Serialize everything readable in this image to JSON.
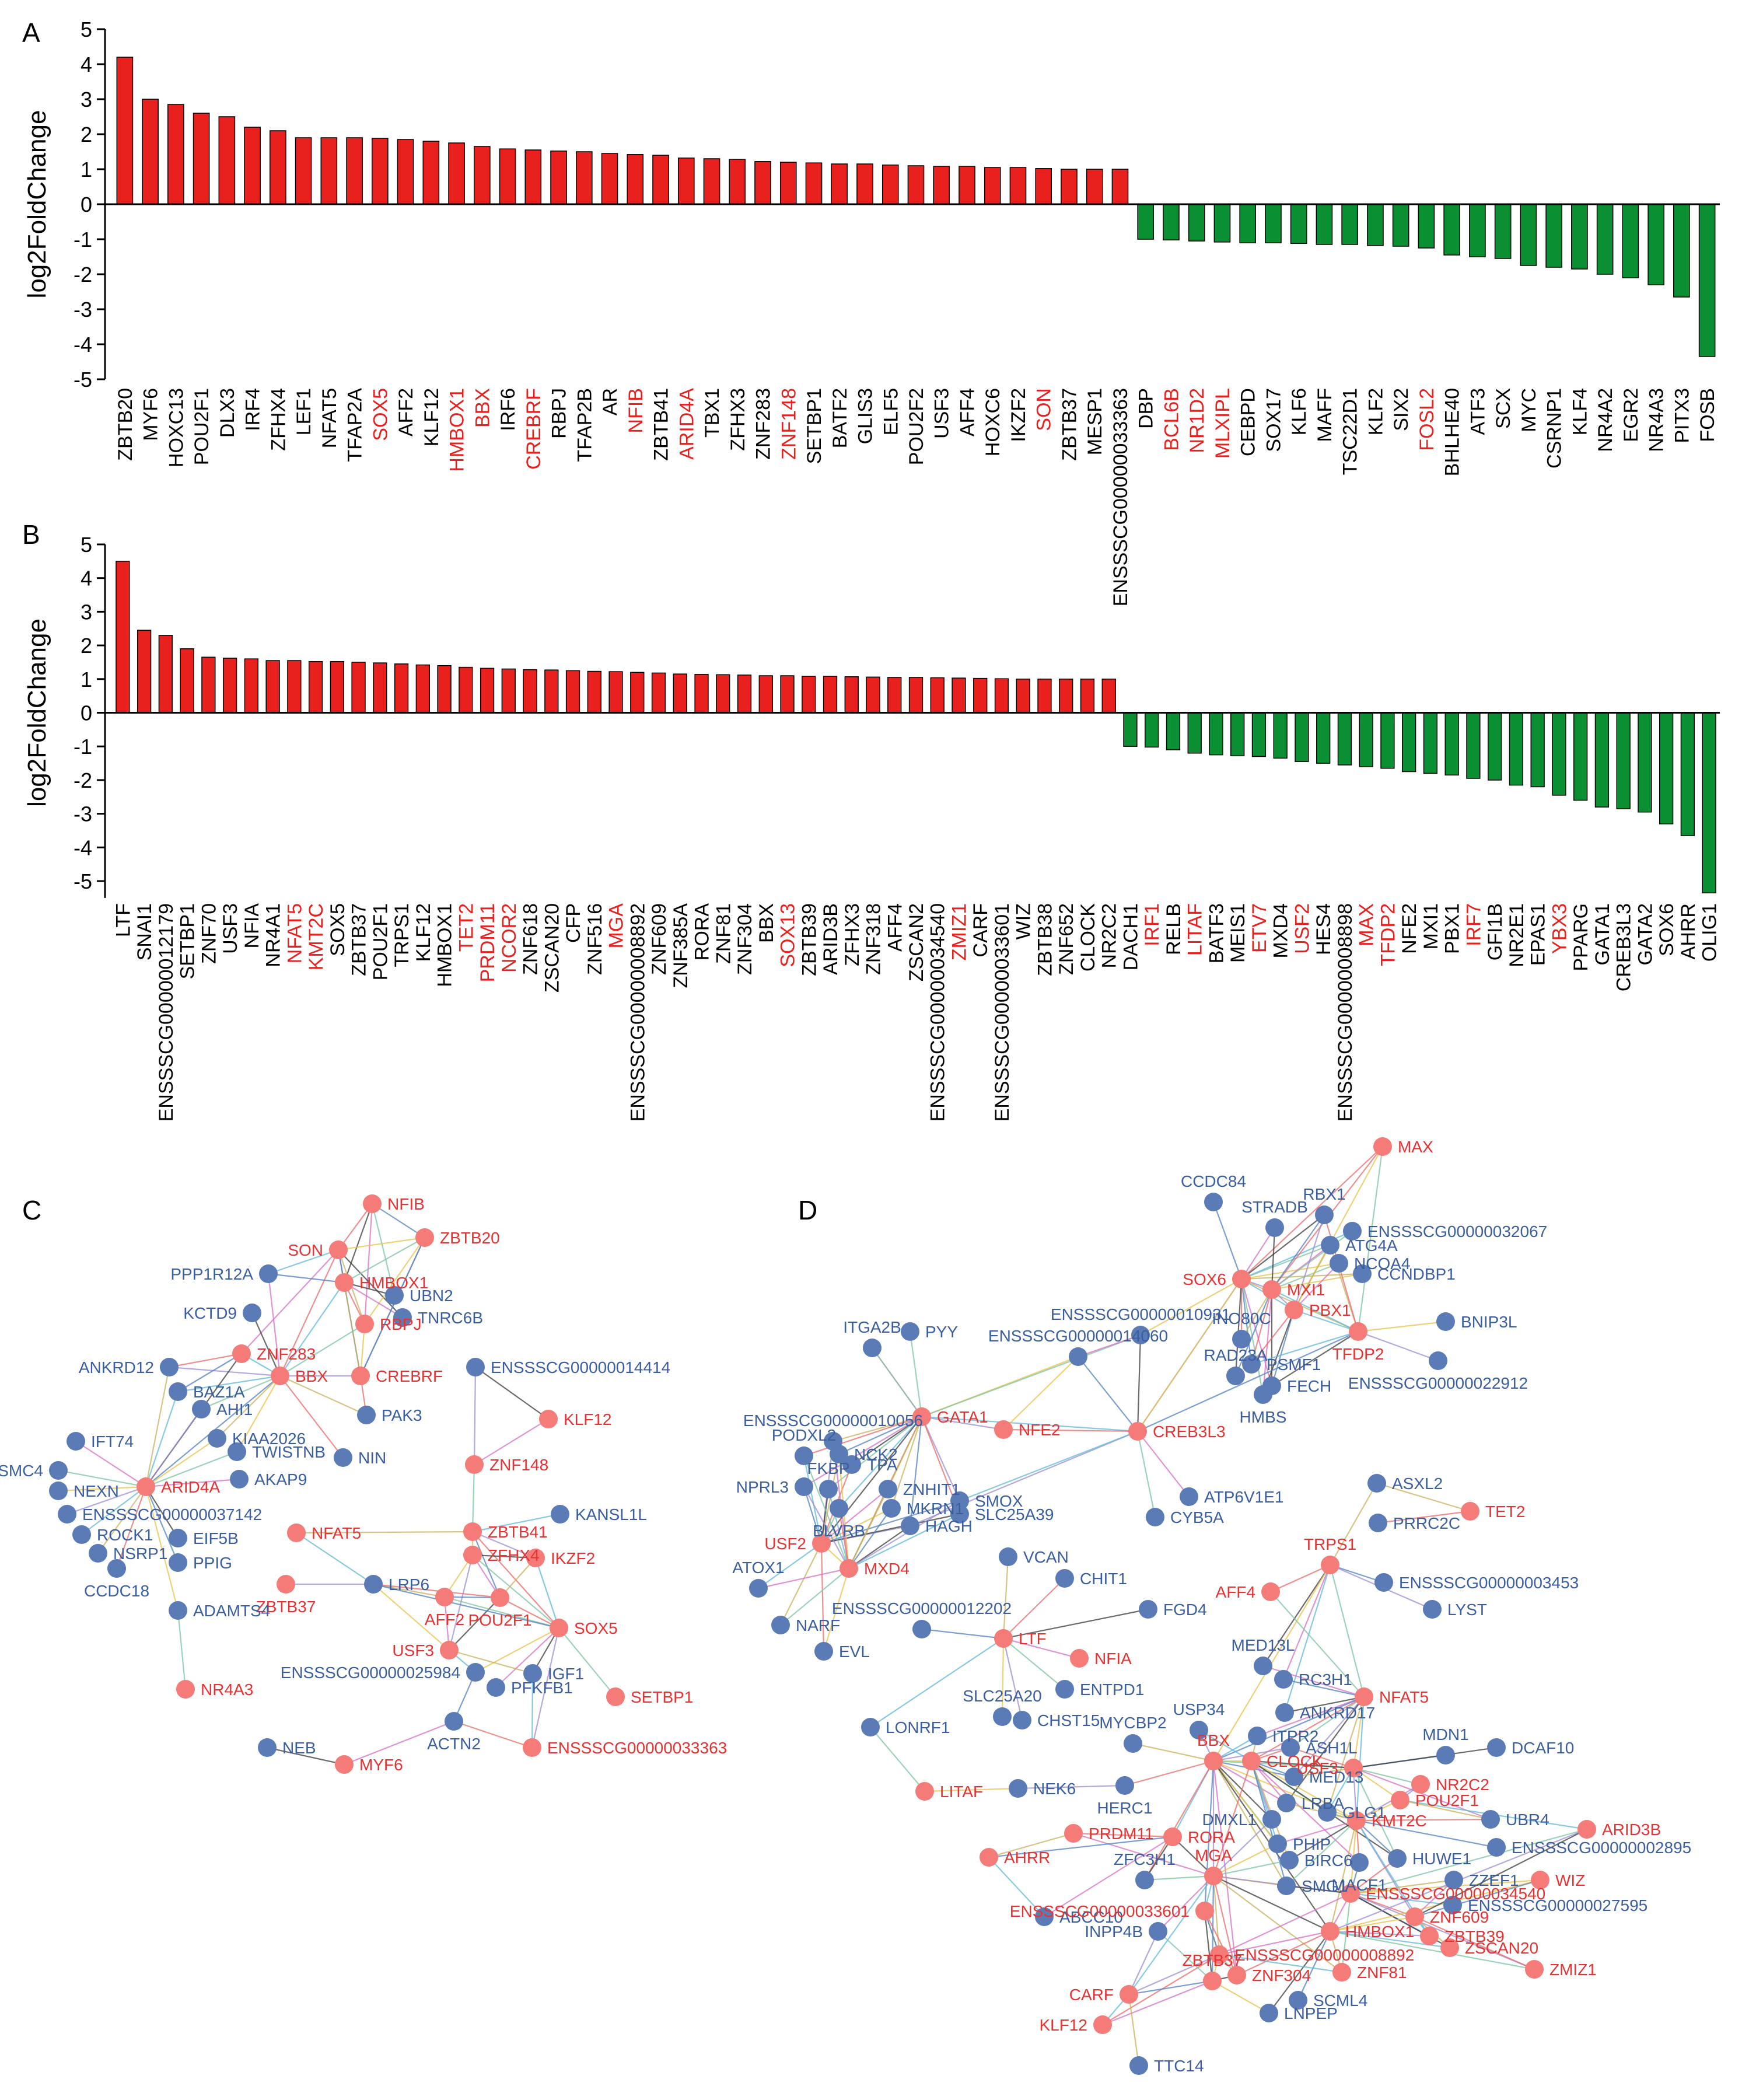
{
  "panel_labels": [
    "A",
    "B",
    "C",
    "D"
  ],
  "colors": {
    "up": "#e8201e",
    "down": "#0a8f33",
    "node_tf": "#f47b78",
    "node_gene": "#5a7bb5",
    "label_tf": "#e83232",
    "label_gene": "#3a5ea0",
    "axis": "#000000"
  },
  "chart_data": [
    {
      "type": "bar",
      "panel": "A",
      "ylabel": "log2FoldChange",
      "ylim": [
        -5,
        5
      ],
      "yticks": [
        5,
        4,
        3,
        2,
        1,
        0,
        -1,
        -2,
        -3,
        -4,
        -5
      ],
      "categories": [
        "ZBTB20",
        "MYF6",
        "HOXC13",
        "POU2F1",
        "DLX3",
        "IRF4",
        "ZFHX4",
        "LEF1",
        "NFAT5",
        "TFAP2A",
        "SOX5",
        "AFF2",
        "KLF12",
        "HMBOX1",
        "BBX",
        "IRF6",
        "CREBRF",
        "RBPJ",
        "TFAP2B",
        "AR",
        "NFIB",
        "ZBTB41",
        "ARID4A",
        "TBX1",
        "ZFHX3",
        "ZNF283",
        "ZNF148",
        "SETBP1",
        "BATF2",
        "GLIS3",
        "ELF5",
        "POU2F2",
        "USF3",
        "AFF4",
        "HOXC6",
        "IKZF2",
        "SON",
        "ZBTB37",
        "MESP1",
        "ENSSSCG00000033363",
        "DBP",
        "BCL6B",
        "NR1D2",
        "MLXIPL",
        "CEBPD",
        "SOX17",
        "KLF6",
        "MAFF",
        "TSC22D1",
        "KLF2",
        "SIX2",
        "FOSL2",
        "BHLHE40",
        "ATF3",
        "SCX",
        "MYC",
        "CSRNP1",
        "KLF4",
        "NR4A2",
        "EGR2",
        "NR4A3",
        "PITX3",
        "FOSB"
      ],
      "values": [
        4.2,
        3.0,
        2.85,
        2.6,
        2.5,
        2.2,
        2.1,
        1.9,
        1.9,
        1.9,
        1.88,
        1.85,
        1.8,
        1.75,
        1.65,
        1.58,
        1.55,
        1.52,
        1.5,
        1.45,
        1.42,
        1.4,
        1.32,
        1.3,
        1.28,
        1.22,
        1.2,
        1.18,
        1.15,
        1.15,
        1.12,
        1.1,
        1.08,
        1.08,
        1.05,
        1.05,
        1.02,
        1.0,
        1.0,
        1.0,
        -1.0,
        -1.02,
        -1.05,
        -1.08,
        -1.1,
        -1.1,
        -1.12,
        -1.15,
        -1.15,
        -1.18,
        -1.2,
        -1.25,
        -1.45,
        -1.5,
        -1.55,
        -1.75,
        -1.8,
        -1.85,
        -2.0,
        -2.1,
        -2.3,
        -2.65,
        -4.35
      ],
      "highlighted": [
        "SOX5",
        "HMBOX1",
        "BBX",
        "CREBRF",
        "NFIB",
        "ARID4A",
        "ZNF148",
        "SON",
        "BCL6B",
        "NR1D2",
        "MLXIPL",
        "FOSL2"
      ]
    },
    {
      "type": "bar",
      "panel": "B",
      "ylabel": "log2FoldChange",
      "ylim": [
        -5.5,
        5
      ],
      "yticks": [
        5,
        4,
        3,
        2,
        1,
        0,
        -1,
        -2,
        -3,
        -4,
        -5
      ],
      "categories": [
        "LTF",
        "SNAI1",
        "ENSSSCG00000012179",
        "SETBP1",
        "ZNF70",
        "USF3",
        "NFIA",
        "NR4A1",
        "NFAT5",
        "KMT2C",
        "SOX5",
        "ZBTB37",
        "POU2F1",
        "TRPS1",
        "KLF12",
        "HMBOX1",
        "TET2",
        "PRDM11",
        "NCOR2",
        "ZNF618",
        "ZSCAN20",
        "CFP",
        "ZNF516",
        "MGA",
        "ENSSSCG00000008892",
        "ZNF609",
        "ZNF385A",
        "RORA",
        "ZNF81",
        "ZNF304",
        "BBX",
        "SOX13",
        "ZBTB39",
        "ARID3B",
        "ZFHX3",
        "ZNF318",
        "AFF4",
        "ZSCAN2",
        "ENSSSCG00000034540",
        "ZMIZ1",
        "CARF",
        "ENSSSCG00000033601",
        "WIZ",
        "ZBTB38",
        "ZNF652",
        "CLOCK",
        "NR2C2",
        "DACH1",
        "IRF1",
        "RELB",
        "LITAF",
        "BATF3",
        "MEIS1",
        "ETV7",
        "MXD4",
        "USF2",
        "HES4",
        "ENSSSCG00000008898",
        "MAX",
        "TFDP2",
        "NFE2",
        "MXI1",
        "PBX1",
        "IRF7",
        "GFI1B",
        "NR2E1",
        "EPAS1",
        "YBX3",
        "PPARG",
        "GATA1",
        "CREB3L3",
        "GATA2",
        "SOX6",
        "AHRR",
        "OLIG1"
      ],
      "values": [
        4.5,
        2.45,
        2.3,
        1.9,
        1.65,
        1.62,
        1.6,
        1.55,
        1.55,
        1.52,
        1.52,
        1.5,
        1.48,
        1.45,
        1.42,
        1.4,
        1.35,
        1.32,
        1.3,
        1.28,
        1.27,
        1.25,
        1.23,
        1.22,
        1.2,
        1.18,
        1.15,
        1.14,
        1.13,
        1.12,
        1.1,
        1.1,
        1.08,
        1.08,
        1.07,
        1.06,
        1.05,
        1.05,
        1.04,
        1.03,
        1.02,
        1.01,
        1.0,
        1.0,
        1.0,
        1.0,
        1.0,
        -1.0,
        -1.02,
        -1.1,
        -1.2,
        -1.25,
        -1.28,
        -1.3,
        -1.35,
        -1.45,
        -1.5,
        -1.55,
        -1.6,
        -1.65,
        -1.75,
        -1.8,
        -1.85,
        -1.95,
        -2.0,
        -2.15,
        -2.2,
        -2.45,
        -2.6,
        -2.8,
        -2.85,
        -2.95,
        -3.3,
        -3.65,
        -5.35
      ],
      "highlighted": [
        "NFAT5",
        "KMT2C",
        "TET2",
        "PRDM11",
        "NCOR2",
        "MGA",
        "SOX13",
        "ZMIZ1",
        "IRF1",
        "LITAF",
        "ETV7",
        "USF2",
        "MAX",
        "TFDP2",
        "IRF7",
        "YBX3"
      ]
    }
  ],
  "networks": [
    {
      "panel": "C",
      "nodes": [
        {
          "id": "NFIB",
          "tf": true
        },
        {
          "id": "SON",
          "tf": true
        },
        {
          "id": "ZBTB20",
          "tf": true
        },
        {
          "id": "PPP1R12A",
          "tf": false
        },
        {
          "id": "HMBOX1",
          "tf": true
        },
        {
          "id": "UBN2",
          "tf": false
        },
        {
          "id": "TNRC6B",
          "tf": false
        },
        {
          "id": "KCTD9",
          "tf": false
        },
        {
          "id": "RBPJ",
          "tf": true
        },
        {
          "id": "ZNF283",
          "tf": true
        },
        {
          "id": "ANKRD12",
          "tf": false
        },
        {
          "id": "BBX",
          "tf": true
        },
        {
          "id": "CREBRF",
          "tf": true
        },
        {
          "id": "ENSSSCG00000014414",
          "tf": false
        },
        {
          "id": "BAZ1A",
          "tf": false
        },
        {
          "id": "AHI1",
          "tf": false
        },
        {
          "id": "PAK3",
          "tf": false
        },
        {
          "id": "KLF12",
          "tf": true
        },
        {
          "id": "IFT74",
          "tf": false
        },
        {
          "id": "KIAA2026",
          "tf": false
        },
        {
          "id": "TWISTNB",
          "tf": false
        },
        {
          "id": "NIN",
          "tf": false
        },
        {
          "id": "SMC4",
          "tf": false
        },
        {
          "id": "AKAP9",
          "tf": false
        },
        {
          "id": "ZNF148",
          "tf": true
        },
        {
          "id": "NEXN",
          "tf": false
        },
        {
          "id": "ARID4A",
          "tf": true
        },
        {
          "id": "ENSSSCG00000037142",
          "tf": false
        },
        {
          "id": "KANSL1L",
          "tf": false
        },
        {
          "id": "NFAT5",
          "tf": true
        },
        {
          "id": "ROCK1",
          "tf": false
        },
        {
          "id": "EIF5B",
          "tf": false
        },
        {
          "id": "ZBTB41",
          "tf": true
        },
        {
          "id": "NSRP1",
          "tf": false
        },
        {
          "id": "PPIG",
          "tf": false
        },
        {
          "id": "LRP6",
          "tf": false
        },
        {
          "id": "ZFHX4",
          "tf": true
        },
        {
          "id": "CCDC18",
          "tf": false
        },
        {
          "id": "IKZF2",
          "tf": true
        },
        {
          "id": "ZBTB37",
          "tf": true
        },
        {
          "id": "ADAMTS4",
          "tf": false
        },
        {
          "id": "AFF2",
          "tf": true
        },
        {
          "id": "POU2F1",
          "tf": true
        },
        {
          "id": "SOX5",
          "tf": true
        },
        {
          "id": "USF3",
          "tf": true
        },
        {
          "id": "ENSSSCG00000025984",
          "tf": false
        },
        {
          "id": "IGF1",
          "tf": false
        },
        {
          "id": "PFKFB1",
          "tf": false
        },
        {
          "id": "NR4A3",
          "tf": true
        },
        {
          "id": "SETBP1",
          "tf": true
        },
        {
          "id": "ACTN2",
          "tf": false
        },
        {
          "id": "NEB",
          "tf": false
        },
        {
          "id": "ENSSSCG00000033363",
          "tf": true
        },
        {
          "id": "MYF6",
          "tf": true
        }
      ]
    },
    {
      "panel": "D",
      "nodes": [
        {
          "id": "MAX",
          "tf": true
        },
        {
          "id": "CCDC84",
          "tf": false
        },
        {
          "id": "RBX1",
          "tf": false
        },
        {
          "id": "STRADB",
          "tf": false
        },
        {
          "id": "ENSSSCG00000032067",
          "tf": false
        },
        {
          "id": "ATG4A",
          "tf": false
        },
        {
          "id": "NCOA4",
          "tf": false
        },
        {
          "id": "SOX6",
          "tf": true
        },
        {
          "id": "CCNDBP1",
          "tf": false
        },
        {
          "id": "MXI1",
          "tf": true
        },
        {
          "id": "PBX1",
          "tf": true
        },
        {
          "id": "BNIP3L",
          "tf": false
        },
        {
          "id": "ITGA2B",
          "tf": false
        },
        {
          "id": "PYY",
          "tf": false
        },
        {
          "id": "ENSSSCG00000010931",
          "tf": false
        },
        {
          "id": "TFDP2",
          "tf": true
        },
        {
          "id": "INO80C",
          "tf": false
        },
        {
          "id": "ENSSSCG00000014060",
          "tf": false
        },
        {
          "id": "PSMF1",
          "tf": false
        },
        {
          "id": "ENSSSCG00000022912",
          "tf": false
        },
        {
          "id": "RAD23A",
          "tf": false
        },
        {
          "id": "FECH",
          "tf": false
        },
        {
          "id": "HMBS",
          "tf": false
        },
        {
          "id": "GATA1",
          "tf": true
        },
        {
          "id": "ENSSSCG00000010056",
          "tf": false
        },
        {
          "id": "NFE2",
          "tf": true
        },
        {
          "id": "CREB3L3",
          "tf": true
        },
        {
          "id": "PODXL2",
          "tf": false
        },
        {
          "id": "NCK2",
          "tf": false
        },
        {
          "id": "TPA",
          "tf": false
        },
        {
          "id": "NPRL3",
          "tf": false
        },
        {
          "id": "FKBP",
          "tf": false
        },
        {
          "id": "ZNHIT1",
          "tf": false
        },
        {
          "id": "SMOX",
          "tf": false
        },
        {
          "id": "ATP6V1E1",
          "tf": false
        },
        {
          "id": "BLVRB",
          "tf": false
        },
        {
          "id": "MKRN1",
          "tf": false
        },
        {
          "id": "SLC25A39",
          "tf": false
        },
        {
          "id": "ASXL2",
          "tf": false
        },
        {
          "id": "CYB5A",
          "tf": false
        },
        {
          "id": "HAGH",
          "tf": false
        },
        {
          "id": "TET2",
          "tf": true
        },
        {
          "id": "PRRC2C",
          "tf": false
        },
        {
          "id": "USF2",
          "tf": true
        },
        {
          "id": "VCAN",
          "tf": false
        },
        {
          "id": "MXD4",
          "tf": true
        },
        {
          "id": "TRPS1",
          "tf": true
        },
        {
          "id": "ATOX1",
          "tf": false
        },
        {
          "id": "CHIT1",
          "tf": false
        },
        {
          "id": "ENSSSCG00000003453",
          "tf": false
        },
        {
          "id": "AFF4",
          "tf": true
        },
        {
          "id": "LYST",
          "tf": false
        },
        {
          "id": "ENSSSCG00000012202",
          "tf": false
        },
        {
          "id": "FGD4",
          "tf": false
        },
        {
          "id": "NARF",
          "tf": false
        },
        {
          "id": "LTF",
          "tf": true
        },
        {
          "id": "EVL",
          "tf": false
        },
        {
          "id": "NFIA",
          "tf": true
        },
        {
          "id": "MED13L",
          "tf": false
        },
        {
          "id": "ENTPD1",
          "tf": false
        },
        {
          "id": "RC3H1",
          "tf": false
        },
        {
          "id": "SLC25A20",
          "tf": false
        },
        {
          "id": "NFAT5",
          "tf": true
        },
        {
          "id": "CHST15",
          "tf": false
        },
        {
          "id": "ANKRD17",
          "tf": false
        },
        {
          "id": "LONRF1",
          "tf": false
        },
        {
          "id": "USP34",
          "tf": false
        },
        {
          "id": "ITPR2",
          "tf": false
        },
        {
          "id": "MYCBP2",
          "tf": false
        },
        {
          "id": "ASH1L",
          "tf": false
        },
        {
          "id": "MDN1",
          "tf": false
        },
        {
          "id": "DCAF10",
          "tf": false
        },
        {
          "id": "BBX",
          "tf": true
        },
        {
          "id": "CLOCK",
          "tf": true
        },
        {
          "id": "MED13",
          "tf": false
        },
        {
          "id": "USF3",
          "tf": true
        },
        {
          "id": "LITAF",
          "tf": true
        },
        {
          "id": "NEK6",
          "tf": false
        },
        {
          "id": "HERC1",
          "tf": false
        },
        {
          "id": "NR2C2",
          "tf": true
        },
        {
          "id": "POU2F1",
          "tf": true
        },
        {
          "id": "LRBA",
          "tf": false
        },
        {
          "id": "GLG1",
          "tf": false
        },
        {
          "id": "KMT2C",
          "tf": true
        },
        {
          "id": "UBR4",
          "tf": false
        },
        {
          "id": "ARID3B",
          "tf": true
        },
        {
          "id": "DMXL1",
          "tf": false
        },
        {
          "id": "PRDM11",
          "tf": true
        },
        {
          "id": "RORA",
          "tf": true
        },
        {
          "id": "PHIP",
          "tf": false
        },
        {
          "id": "ENSSSCG00000002895",
          "tf": false
        },
        {
          "id": "AHRR",
          "tf": true
        },
        {
          "id": "BIRC6",
          "tf": false
        },
        {
          "id": "MACF1",
          "tf": false
        },
        {
          "id": "HUWE1",
          "tf": false
        },
        {
          "id": "MGA",
          "tf": true
        },
        {
          "id": "ZZEF1",
          "tf": false
        },
        {
          "id": "ZFC3H1",
          "tf": false
        },
        {
          "id": "SMG1",
          "tf": false
        },
        {
          "id": "ENSSSCG00000034540",
          "tf": true
        },
        {
          "id": "WIZ",
          "tf": true
        },
        {
          "id": "ABCC10",
          "tf": false
        },
        {
          "id": "ENSSSCG00000027595",
          "tf": false
        },
        {
          "id": "ENSSSCG00000033601",
          "tf": true
        },
        {
          "id": "ZNF609",
          "tf": true
        },
        {
          "id": "INPP4B",
          "tf": false
        },
        {
          "id": "HMBOX1",
          "tf": true
        },
        {
          "id": "ZBTB39",
          "tf": true
        },
        {
          "id": "ZSCAN20",
          "tf": true
        },
        {
          "id": "ENSSSCG00000008892",
          "tf": true
        },
        {
          "id": "ZMIZ1",
          "tf": true
        },
        {
          "id": "ZNF304",
          "tf": true
        },
        {
          "id": "ZNF81",
          "tf": true
        },
        {
          "id": "ZBTB37",
          "tf": true
        },
        {
          "id": "CARF",
          "tf": true
        },
        {
          "id": "SCML4",
          "tf": false
        },
        {
          "id": "LNPEP",
          "tf": false
        },
        {
          "id": "KLF12",
          "tf": true
        },
        {
          "id": "TTC14",
          "tf": false
        }
      ]
    }
  ]
}
